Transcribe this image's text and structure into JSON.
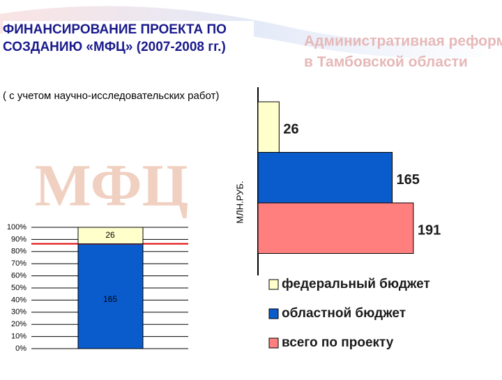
{
  "header": {
    "title": "ФИНАНСИРОВАНИЕ ПРОЕКТА ПО СОЗДАНИЮ «МФЦ» (2007-2008 гг.)",
    "subtitle": "( с учетом научно-исследовательских работ)",
    "watermark": [
      "Административная реформа",
      "в Тамбовской области"
    ],
    "logo": "МФЦ"
  },
  "chart_data": [
    {
      "type": "bar100",
      "values": [
        165,
        26
      ],
      "colors": [
        "#0a5ccc",
        "#ffffcc"
      ],
      "ylim": [
        0,
        100
      ],
      "yticks": [
        {
          "value": 0,
          "label": "0%"
        },
        {
          "value": 10,
          "label": "10%"
        },
        {
          "value": 20,
          "label": "20%"
        },
        {
          "value": 30,
          "label": "30%"
        },
        {
          "value": 40,
          "label": "40%"
        },
        {
          "value": 50,
          "label": "50%"
        },
        {
          "value": 60,
          "label": "60%"
        },
        {
          "value": 70,
          "label": "70%"
        },
        {
          "value": 80,
          "label": "80%"
        },
        {
          "value": 90,
          "label": "90%"
        },
        {
          "value": 100,
          "label": "100%"
        }
      ],
      "grid": true
    },
    {
      "type": "hbar",
      "ylabel": "МЛН.РУБ.",
      "xlim": [
        0,
        200
      ],
      "series": [
        {
          "name": "федеральный бюджет",
          "color": "#ffffcc",
          "values": [
            26
          ]
        },
        {
          "name": "областной бюджет",
          "color": "#0a5ccc",
          "values": [
            165
          ]
        },
        {
          "name": "всего по проекту",
          "color": "#ff7f7f",
          "values": [
            191
          ]
        }
      ]
    }
  ]
}
